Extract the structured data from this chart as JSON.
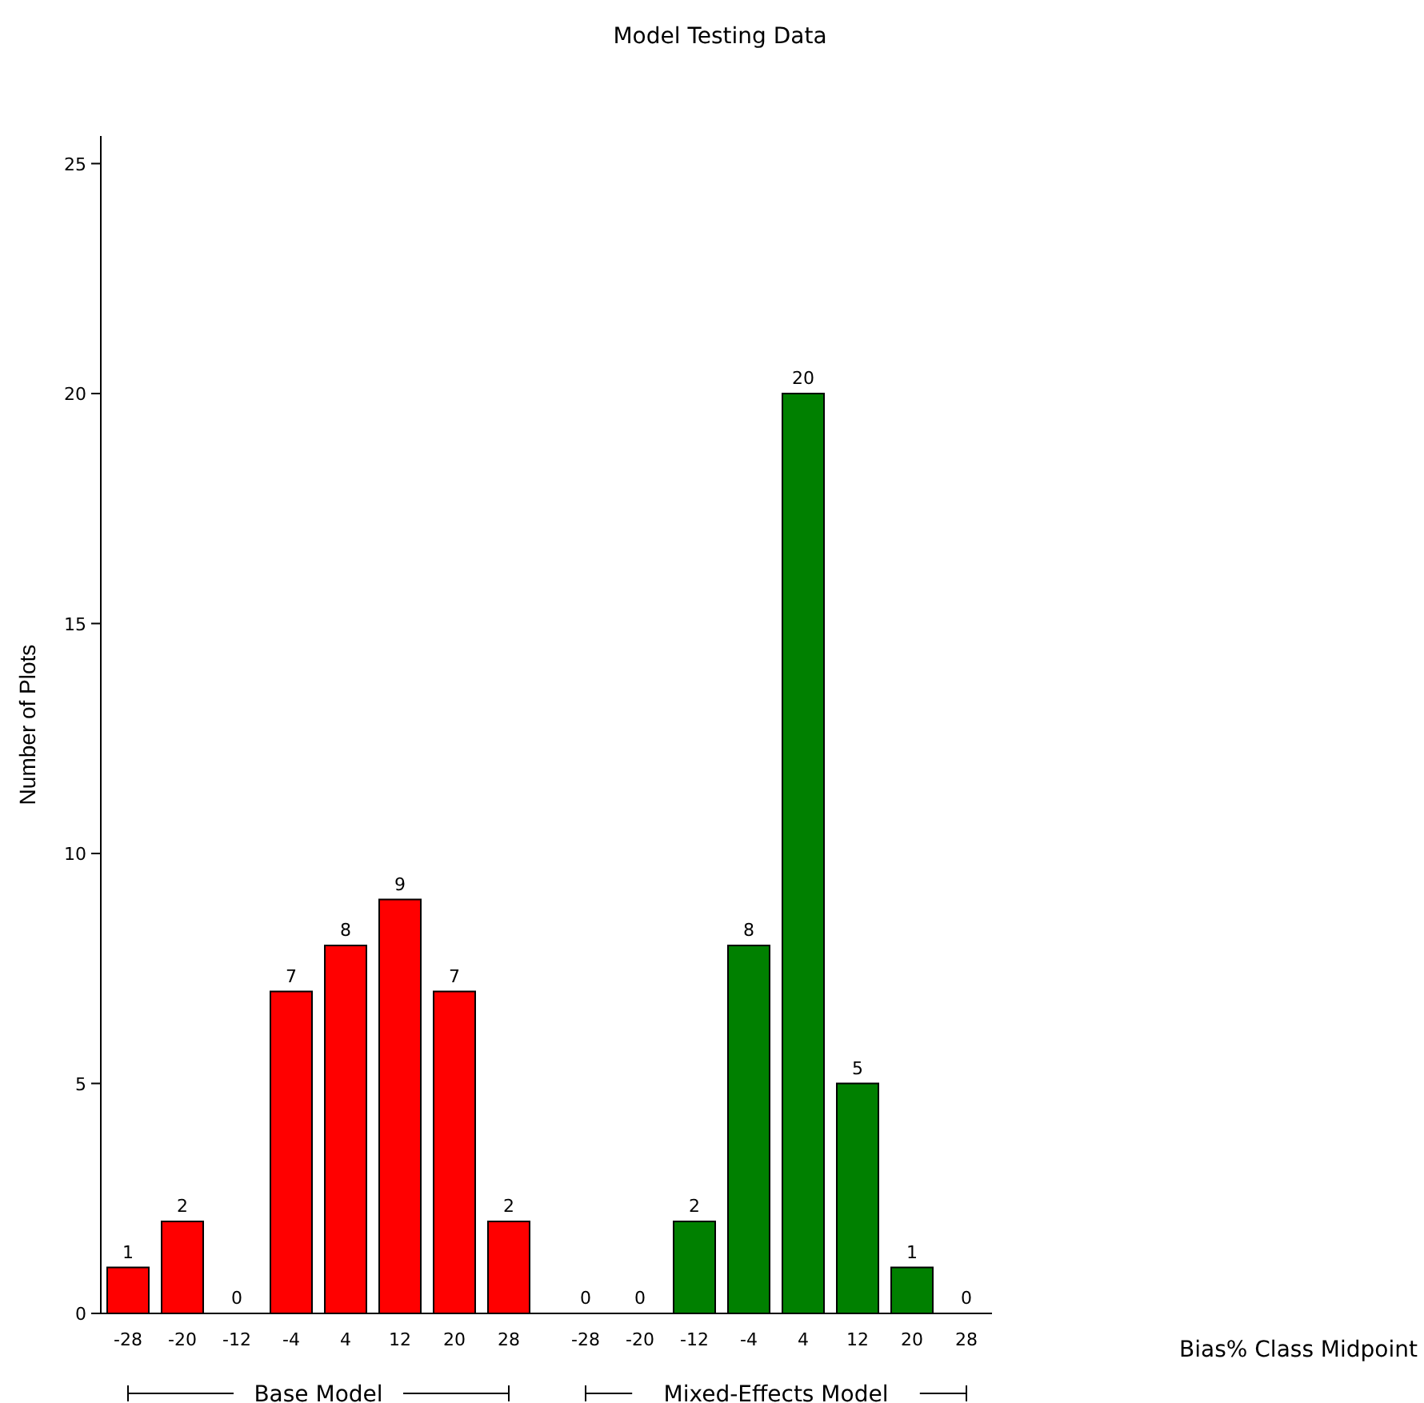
{
  "chart_data": {
    "type": "bar",
    "title": "Model Testing Data",
    "annotations": [
      "Bias% Class Midpoint"
    ],
    "ylabel": "Number of Plots",
    "categories": [
      "-28",
      "-20",
      "-12",
      "-4",
      "4",
      "12",
      "20",
      "28",
      "-28",
      "-20",
      "-12",
      "-4",
      "4",
      "12",
      "20",
      "28"
    ],
    "series": [
      {
        "name": "Base Model",
        "color": "#ff0000",
        "values": [
          1,
          2,
          0,
          7,
          8,
          9,
          7,
          2,
          null,
          null,
          null,
          null,
          null,
          null,
          null,
          null
        ]
      },
      {
        "name": "Mixed-Effects Model",
        "color": "#008000",
        "values": [
          null,
          null,
          null,
          null,
          null,
          null,
          null,
          null,
          0,
          0,
          2,
          8,
          20,
          5,
          1,
          0
        ]
      }
    ],
    "ylim": [
      0,
      25.6
    ],
    "yticks": [
      0,
      5,
      10,
      15,
      20,
      25
    ],
    "data_labels": true,
    "legend": "bottom",
    "grid": false
  }
}
